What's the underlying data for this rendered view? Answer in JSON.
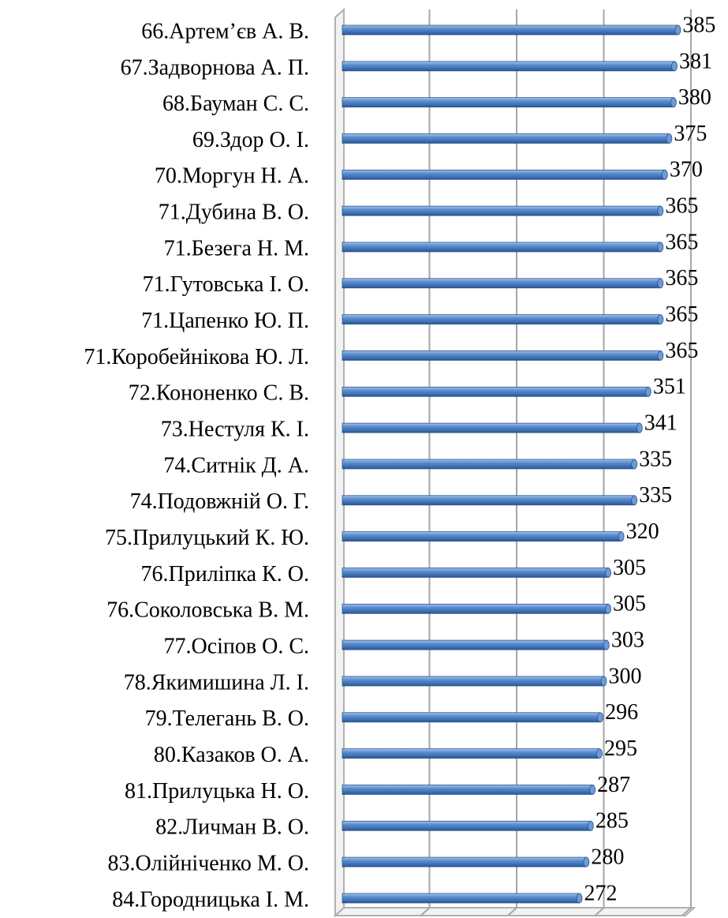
{
  "chart_data": {
    "type": "bar",
    "orientation": "horizontal",
    "categories": [
      "66.Артем’єв А. В.",
      "67.Задворнова А. П.",
      "68.Бауман С. С.",
      "69.Здор О. І.",
      "70.Моргун Н. А.",
      "71.Дубина В. О.",
      "71.Безега Н. М.",
      "71.Гутовська І. О.",
      "71.Цапенко Ю. П.",
      "71.Коробейнікова Ю. Л.",
      "72.Кононенко С. В.",
      "73.Нестуля К. І.",
      "74.Ситнік Д. А.",
      "74.Подовжній О. Г.",
      "75.Прилуцький К. Ю.",
      "76.Приліпка К. О.",
      "76.Соколовська В. М.",
      "77.Осіпов О. С.",
      "78.Якимишина Л. І.",
      "79.Телегань В. О.",
      "80.Казаков О. А.",
      "81.Прилуцька Н. О.",
      "82.Личман В. О.",
      "83.Олійніченко М. О.",
      "84.Городницька І. М."
    ],
    "values": [
      385,
      381,
      380,
      375,
      370,
      365,
      365,
      365,
      365,
      365,
      351,
      341,
      335,
      335,
      320,
      305,
      305,
      303,
      300,
      296,
      295,
      287,
      285,
      280,
      272
    ],
    "color": "#4f81bd",
    "xlim": [
      0,
      400
    ],
    "xticks": [
      0,
      100,
      200,
      300,
      400
    ],
    "grid": true
  }
}
